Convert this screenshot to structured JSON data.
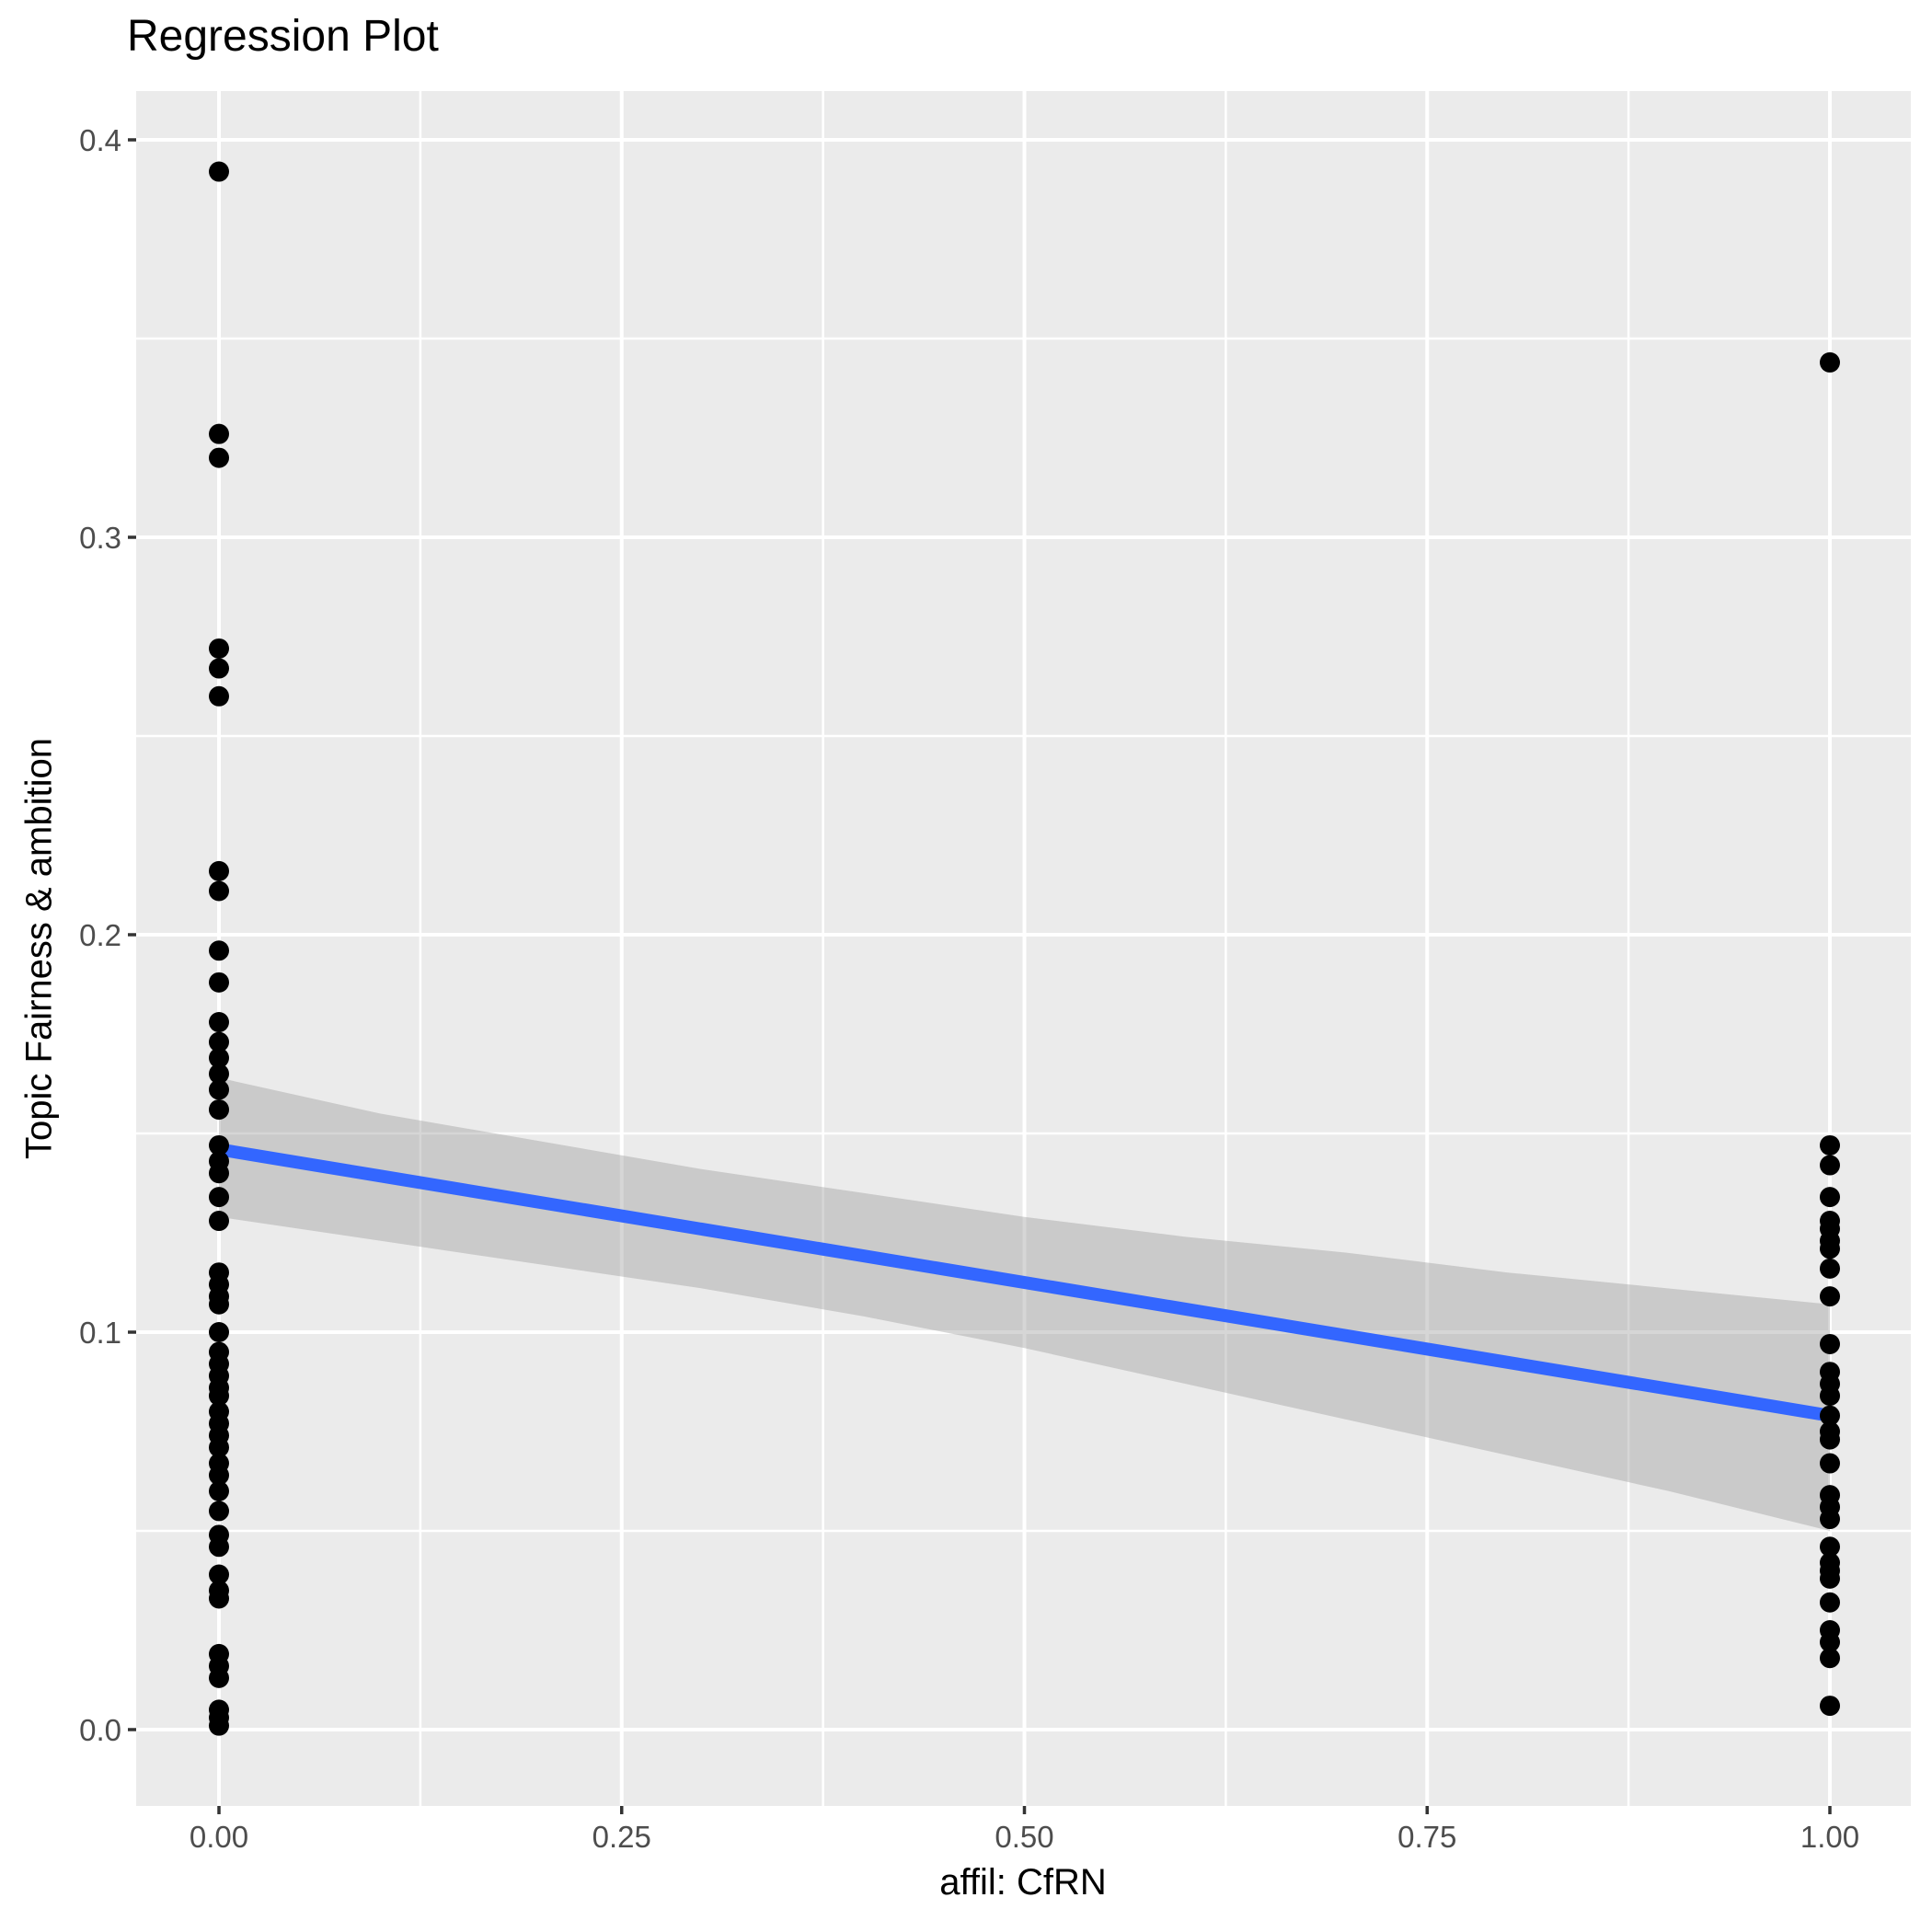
{
  "title": "Regression Plot",
  "colors": {
    "panel_background": "#EBEBEB",
    "gridline": "#FFFFFF",
    "point": "#000000",
    "regression_line": "#3366FF",
    "confidence_band": "#999999",
    "confidence_band_opacity": 0.4,
    "tick_label": "#4D4D4D",
    "tick_mark": "#333333",
    "axis_title": "#000000",
    "plot_background": "#FFFFFF"
  },
  "chart_data": {
    "type": "scatter",
    "title": "Regression Plot",
    "xlabel": "affil: CfRN",
    "ylabel": "Topic Fairness & ambition",
    "xlim": [
      -0.0514,
      1.0503
    ],
    "ylim": [
      -0.0192,
      0.4123
    ],
    "grid": true,
    "legend": "none",
    "x_ticks": {
      "values": [
        0,
        0.25,
        0.5,
        0.75,
        1.0
      ],
      "labels": [
        "0.00",
        "0.25",
        "0.50",
        "0.75",
        "1.00"
      ],
      "minor_values": [
        0.125,
        0.375,
        0.625,
        0.875
      ]
    },
    "y_ticks": {
      "values": [
        0,
        0.1,
        0.2,
        0.3,
        0.4
      ],
      "labels": [
        "0.0",
        "0.1",
        "0.2",
        "0.3",
        "0.4"
      ],
      "minor_values": [
        0.05,
        0.15,
        0.25,
        0.35
      ]
    },
    "series": [
      {
        "name": "observations",
        "type": "scatter",
        "color": "#000000",
        "groups": [
          {
            "x": 0,
            "y": [
              0.392,
              0.326,
              0.32,
              0.272,
              0.267,
              0.26,
              0.216,
              0.211,
              0.196,
              0.188,
              0.178,
              0.173,
              0.169,
              0.165,
              0.161,
              0.156,
              0.147,
              0.143,
              0.14,
              0.134,
              0.128,
              0.115,
              0.112,
              0.109,
              0.107,
              0.1,
              0.095,
              0.092,
              0.089,
              0.086,
              0.084,
              0.08,
              0.077,
              0.074,
              0.071,
              0.067,
              0.064,
              0.06,
              0.055,
              0.049,
              0.046,
              0.039,
              0.035,
              0.033,
              0.019,
              0.016,
              0.013,
              0.005,
              0.003,
              0.001
            ]
          },
          {
            "x": 1,
            "y": [
              0.344,
              0.147,
              0.142,
              0.134,
              0.128,
              0.126,
              0.123,
              0.121,
              0.116,
              0.109,
              0.097,
              0.09,
              0.087,
              0.084,
              0.079,
              0.075,
              0.073,
              0.067,
              0.059,
              0.056,
              0.053,
              0.046,
              0.042,
              0.04,
              0.038,
              0.032,
              0.025,
              0.022,
              0.018,
              0.006
            ]
          }
        ]
      },
      {
        "name": "regression-line",
        "type": "line",
        "color": "#3366FF",
        "x": [
          0,
          1
        ],
        "y": [
          0.146,
          0.079
        ]
      },
      {
        "name": "confidence-band",
        "type": "area",
        "color": "#999999",
        "opacity": 0.4,
        "x": [
          0,
          0.1,
          0.2,
          0.3,
          0.4,
          0.5,
          0.6,
          0.7,
          0.8,
          0.9,
          1.0
        ],
        "upper": [
          0.164,
          0.155,
          0.148,
          0.141,
          0.135,
          0.129,
          0.124,
          0.12,
          0.115,
          0.111,
          0.107
        ],
        "lower": [
          0.129,
          0.123,
          0.117,
          0.111,
          0.104,
          0.096,
          0.087,
          0.078,
          0.069,
          0.06,
          0.05
        ]
      }
    ]
  }
}
